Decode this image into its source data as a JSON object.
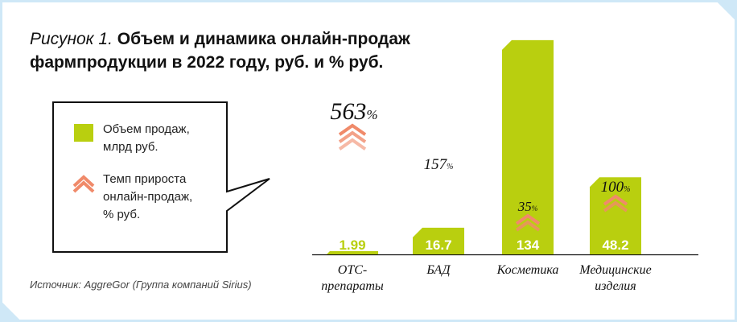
{
  "title": {
    "prefix": "Рисунок 1.",
    "main_line1": "Объем и динамика онлайн-продаж",
    "main_line2": "фармпродукции в 2022 году, руб. и % руб."
  },
  "legend": {
    "volume_label_1": "Объем продаж,",
    "volume_label_2": "млрд руб.",
    "growth_label_1": "Темп прироста",
    "growth_label_2": "онлайн-продаж,",
    "growth_label_3": "% руб."
  },
  "source": "Источник: AggreGor (Группа компаний Sirius)",
  "colors": {
    "bar": "#b9cf0f",
    "chevron": "#f08a6a",
    "background": "#cfe8f7"
  },
  "chart_data": {
    "type": "bar",
    "categories": [
      [
        "OTC-",
        "препараты"
      ],
      [
        "БАД"
      ],
      [
        "Косметика"
      ],
      [
        "Медицинские",
        "изделия"
      ]
    ],
    "values": [
      1.99,
      16.7,
      134,
      48.2
    ],
    "value_labels": [
      "1.99",
      "16.7",
      "134",
      "48.2"
    ],
    "growth_values": [
      563,
      157,
      35,
      100
    ],
    "growth_labels": [
      "563",
      "157",
      "35",
      "100"
    ],
    "growth_unit": "%",
    "ylim": [
      0,
      140
    ]
  }
}
